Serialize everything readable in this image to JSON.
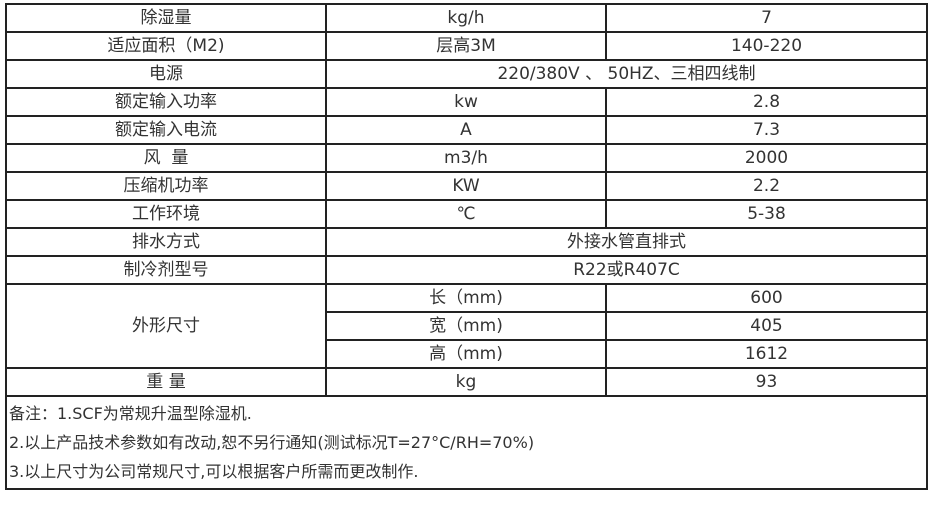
{
  "rows": [
    {
      "name": "除湿量",
      "unit": "kg/h",
      "value": "7"
    },
    {
      "name": "适应面积（M2)",
      "unit": "层高3M",
      "value": "140-220"
    },
    {
      "name": "电源",
      "merged": "220/380V 、 50HZ、三相四线制"
    },
    {
      "name": "额定输入功率",
      "unit": "kw",
      "value": "2.8"
    },
    {
      "name": "额定输入电流",
      "unit": "A",
      "value": "7.3"
    },
    {
      "name": "风  量",
      "unit": "m3/h",
      "value": "2000"
    },
    {
      "name": "压缩机功率",
      "unit": "KW",
      "value": "2.2"
    },
    {
      "name": "工作环境",
      "unit": "℃",
      "value": "5-38"
    },
    {
      "name": "排水方式",
      "merged": "外接水管直排式"
    },
    {
      "name": "制冷剂型号",
      "merged": "R22或R407C"
    }
  ],
  "dimensions": {
    "name": "外形尺寸",
    "items": [
      {
        "unit": "长（mm)",
        "value": "600"
      },
      {
        "unit": "宽（mm)",
        "value": "405"
      },
      {
        "unit": "高（mm)",
        "value": "1612"
      }
    ]
  },
  "weight": {
    "name": "重 量",
    "unit": "kg",
    "value": "93"
  },
  "notes": [
    "备注：1.SCF为常规升温型除湿机.",
    "2.以上产品技术参数如有改动,恕不另行通知(测试标况T=27°C/RH=70%)",
    "3.以上尺寸为公司常规尺寸,可以根据客户所需而更改制作."
  ]
}
